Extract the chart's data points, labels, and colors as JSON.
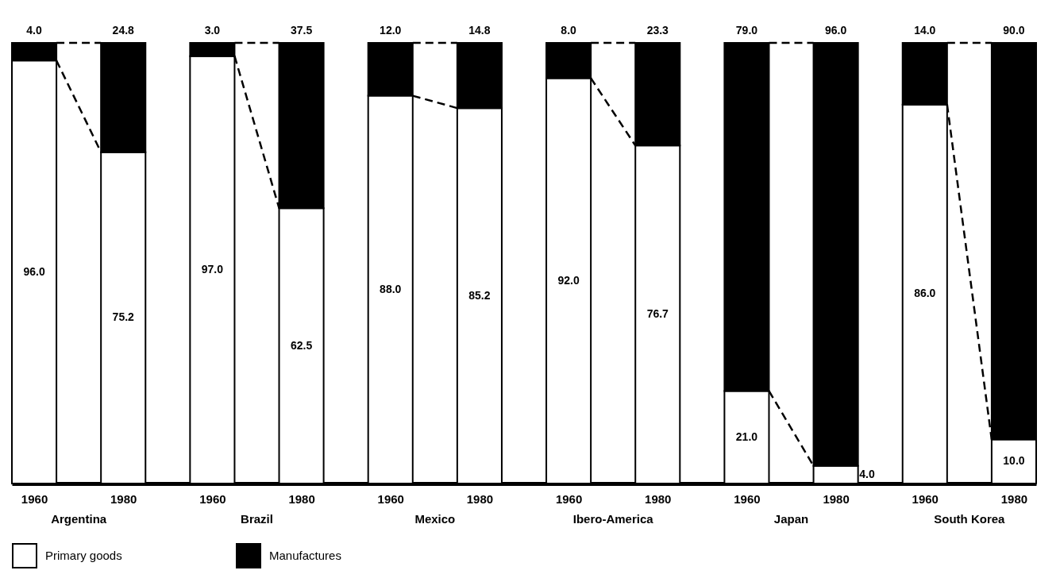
{
  "chart_data": {
    "type": "bar",
    "stacked": true,
    "categories": [
      "1960",
      "1980",
      "1960",
      "1980",
      "1960",
      "1980",
      "1960",
      "1980",
      "1960",
      "1980",
      "1960",
      "1980"
    ],
    "series": [
      {
        "name": "Primary goods",
        "color": "#ffffff",
        "values": [
          96.0,
          75.2,
          97.0,
          62.5,
          88.0,
          85.2,
          92.0,
          76.7,
          21.0,
          4.0,
          86.0,
          10.0
        ],
        "value_labels": [
          "96.0",
          "75.2",
          "97.0",
          "62.5",
          "88.0",
          "85.2",
          "92.0",
          "76.7",
          "21.0",
          "4.0",
          "86.0",
          "10.0"
        ]
      },
      {
        "name": "Manufactures",
        "color": "#000000",
        "values": [
          4.0,
          24.8,
          3.0,
          37.5,
          12.0,
          14.8,
          8.0,
          23.3,
          79.0,
          96.0,
          14.0,
          90.0
        ],
        "value_labels": [
          "4.0",
          "24.8",
          "3.0",
          "37.5",
          "12.0",
          "14.8",
          "8.0",
          "23.3",
          "79.0",
          "96.0",
          "14.0",
          "90.0"
        ]
      }
    ],
    "annotations": [
      "Argentina",
      "Brazil",
      "Mexico",
      "Ibero-America",
      "Japan",
      "South Korea"
    ],
    "ylim": [
      0,
      100
    ],
    "tick_labels": "x",
    "grid": false,
    "legend": "bottom left"
  }
}
